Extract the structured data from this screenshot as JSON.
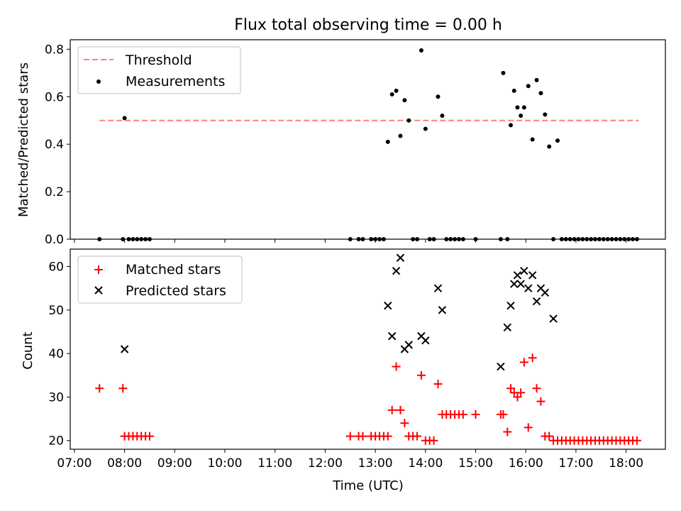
{
  "title": "Flux total observing time = 0.00 h",
  "xlabel": "Time (UTC)",
  "x_ticks": [
    "07:00",
    "08:00",
    "09:00",
    "10:00",
    "11:00",
    "12:00",
    "13:00",
    "14:00",
    "15:00",
    "16:00",
    "17:00",
    "18:00"
  ],
  "colors": {
    "threshold": "#ff7f7f",
    "measurements": "#000000",
    "matched": "#ff0000",
    "predicted": "#000000"
  },
  "chart_data": [
    {
      "type": "scatter",
      "panel": "top",
      "ylabel": "Matched/Predicted stars",
      "xlim": [
        "06:55",
        "18:47"
      ],
      "ylim": [
        0,
        0.84
      ],
      "y_ticks": [
        "0.0",
        "0.2",
        "0.4",
        "0.6",
        "0.8"
      ],
      "legend": "top-left",
      "threshold": {
        "name": "Threshold",
        "y": 0.5,
        "x_range": [
          "07:30",
          "18:15"
        ]
      },
      "series": [
        {
          "name": "Measurements",
          "marker": "dot",
          "points": [
            [
              "07:30",
              0.0
            ],
            [
              "07:58",
              0.0
            ],
            [
              "08:00",
              0.51
            ],
            [
              "08:05",
              0.0
            ],
            [
              "08:10",
              0.0
            ],
            [
              "08:15",
              0.0
            ],
            [
              "08:20",
              0.0
            ],
            [
              "08:25",
              0.0
            ],
            [
              "08:30",
              0.0
            ],
            [
              "12:30",
              0.0
            ],
            [
              "12:40",
              0.0
            ],
            [
              "12:45",
              0.0
            ],
            [
              "12:55",
              0.0
            ],
            [
              "13:00",
              0.0
            ],
            [
              "13:05",
              0.0
            ],
            [
              "13:10",
              0.0
            ],
            [
              "13:15",
              0.41
            ],
            [
              "13:20",
              0.61
            ],
            [
              "13:25",
              0.625
            ],
            [
              "13:30",
              0.435
            ],
            [
              "13:35",
              0.585
            ],
            [
              "13:40",
              0.5
            ],
            [
              "13:45",
              0.0
            ],
            [
              "13:50",
              0.0
            ],
            [
              "13:55",
              0.795
            ],
            [
              "14:00",
              0.465
            ],
            [
              "14:05",
              0.0
            ],
            [
              "14:10",
              0.0
            ],
            [
              "14:15",
              0.6
            ],
            [
              "14:20",
              0.52
            ],
            [
              "14:25",
              0.0
            ],
            [
              "14:30",
              0.0
            ],
            [
              "14:35",
              0.0
            ],
            [
              "14:40",
              0.0
            ],
            [
              "14:45",
              0.0
            ],
            [
              "15:00",
              0.0
            ],
            [
              "15:30",
              0.0
            ],
            [
              "15:33",
              0.7
            ],
            [
              "15:38",
              0.0
            ],
            [
              "15:42",
              0.48
            ],
            [
              "15:46",
              0.625
            ],
            [
              "15:50",
              0.555
            ],
            [
              "15:54",
              0.52
            ],
            [
              "15:58",
              0.555
            ],
            [
              "16:03",
              0.645
            ],
            [
              "16:08",
              0.42
            ],
            [
              "16:13",
              0.67
            ],
            [
              "16:18",
              0.615
            ],
            [
              "16:23",
              0.525
            ],
            [
              "16:28",
              0.39
            ],
            [
              "16:33",
              0.0
            ],
            [
              "16:38",
              0.415
            ],
            [
              "16:43",
              0.0
            ],
            [
              "16:48",
              0.0
            ],
            [
              "16:53",
              0.0
            ],
            [
              "16:58",
              0.0
            ],
            [
              "17:03",
              0.0
            ],
            [
              "17:08",
              0.0
            ],
            [
              "17:13",
              0.0
            ],
            [
              "17:18",
              0.0
            ],
            [
              "17:23",
              0.0
            ],
            [
              "17:28",
              0.0
            ],
            [
              "17:33",
              0.0
            ],
            [
              "17:38",
              0.0
            ],
            [
              "17:43",
              0.0
            ],
            [
              "17:48",
              0.0
            ],
            [
              "17:53",
              0.0
            ],
            [
              "17:58",
              0.0
            ],
            [
              "18:03",
              0.0
            ],
            [
              "18:08",
              0.0
            ],
            [
              "18:13",
              0.0
            ]
          ]
        }
      ]
    },
    {
      "type": "scatter",
      "panel": "bottom",
      "ylabel": "Count",
      "xlim": [
        "06:55",
        "18:47"
      ],
      "ylim": [
        18.0,
        64.0
      ],
      "y_ticks": [
        "20",
        "30",
        "40",
        "50",
        "60"
      ],
      "legend": "top-left",
      "series": [
        {
          "name": "Matched stars",
          "marker": "plus",
          "points": [
            [
              "07:30",
              32
            ],
            [
              "07:58",
              32
            ],
            [
              "08:00",
              21
            ],
            [
              "08:05",
              21
            ],
            [
              "08:10",
              21
            ],
            [
              "08:15",
              21
            ],
            [
              "08:20",
              21
            ],
            [
              "08:25",
              21
            ],
            [
              "08:30",
              21
            ],
            [
              "12:30",
              21
            ],
            [
              "12:40",
              21
            ],
            [
              "12:45",
              21
            ],
            [
              "12:55",
              21
            ],
            [
              "13:00",
              21
            ],
            [
              "13:05",
              21
            ],
            [
              "13:10",
              21
            ],
            [
              "13:15",
              21
            ],
            [
              "13:20",
              27
            ],
            [
              "13:25",
              37
            ],
            [
              "13:30",
              27
            ],
            [
              "13:35",
              24
            ],
            [
              "13:40",
              21
            ],
            [
              "13:45",
              21
            ],
            [
              "13:50",
              21
            ],
            [
              "13:55",
              35
            ],
            [
              "14:00",
              20
            ],
            [
              "14:05",
              20
            ],
            [
              "14:10",
              20
            ],
            [
              "14:15",
              33
            ],
            [
              "14:20",
              26
            ],
            [
              "14:25",
              26
            ],
            [
              "14:30",
              26
            ],
            [
              "14:35",
              26
            ],
            [
              "14:40",
              26
            ],
            [
              "14:45",
              26
            ],
            [
              "15:00",
              26
            ],
            [
              "15:30",
              26
            ],
            [
              "15:33",
              26
            ],
            [
              "15:38",
              22
            ],
            [
              "15:42",
              32
            ],
            [
              "15:46",
              31
            ],
            [
              "15:50",
              30
            ],
            [
              "15:54",
              31
            ],
            [
              "15:58",
              38
            ],
            [
              "16:03",
              23
            ],
            [
              "16:08",
              39
            ],
            [
              "16:13",
              32
            ],
            [
              "16:18",
              29
            ],
            [
              "16:23",
              21
            ],
            [
              "16:28",
              21
            ],
            [
              "16:33",
              20
            ],
            [
              "16:38",
              20
            ],
            [
              "16:43",
              20
            ],
            [
              "16:48",
              20
            ],
            [
              "16:53",
              20
            ],
            [
              "16:58",
              20
            ],
            [
              "17:03",
              20
            ],
            [
              "17:08",
              20
            ],
            [
              "17:13",
              20
            ],
            [
              "17:18",
              20
            ],
            [
              "17:23",
              20
            ],
            [
              "17:28",
              20
            ],
            [
              "17:33",
              20
            ],
            [
              "17:38",
              20
            ],
            [
              "17:43",
              20
            ],
            [
              "17:48",
              20
            ],
            [
              "17:53",
              20
            ],
            [
              "17:58",
              20
            ],
            [
              "18:03",
              20
            ],
            [
              "18:08",
              20
            ],
            [
              "18:13",
              20
            ]
          ]
        },
        {
          "name": "Predicted stars",
          "marker": "x",
          "points": [
            [
              "08:00",
              41
            ],
            [
              "13:15",
              51
            ],
            [
              "13:20",
              44
            ],
            [
              "13:25",
              59
            ],
            [
              "13:30",
              62
            ],
            [
              "13:35",
              41
            ],
            [
              "13:40",
              42
            ],
            [
              "13:55",
              44
            ],
            [
              "14:00",
              43
            ],
            [
              "14:15",
              55
            ],
            [
              "14:20",
              50
            ],
            [
              "15:30",
              37
            ],
            [
              "15:38",
              46
            ],
            [
              "15:42",
              51
            ],
            [
              "15:46",
              56
            ],
            [
              "15:50",
              58
            ],
            [
              "15:54",
              56
            ],
            [
              "15:58",
              59
            ],
            [
              "16:03",
              55
            ],
            [
              "16:08",
              58
            ],
            [
              "16:13",
              52
            ],
            [
              "16:18",
              55
            ],
            [
              "16:23",
              54
            ],
            [
              "16:33",
              48
            ]
          ]
        }
      ]
    }
  ]
}
